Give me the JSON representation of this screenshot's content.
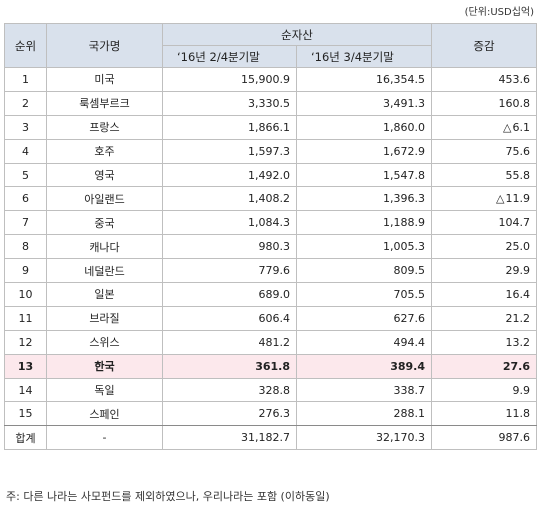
{
  "unit_label": "(단위:USD십억)",
  "header": {
    "rank": "순위",
    "country": "국가명",
    "net_assets": "순자산",
    "q2": "‘16년 2/4분기말",
    "q3": "‘16년 3/4분기말",
    "change": "증감"
  },
  "rows": [
    {
      "rank": "1",
      "country": "미국",
      "q2": "15,900.9",
      "q3": "16,354.5",
      "change": "453.6"
    },
    {
      "rank": "2",
      "country": "룩셈부르크",
      "q2": "3,330.5",
      "q3": "3,491.3",
      "change": "160.8"
    },
    {
      "rank": "3",
      "country": "프랑스",
      "q2": "1,866.1",
      "q3": "1,860.0",
      "change": "6.1",
      "change_prefix": "△"
    },
    {
      "rank": "4",
      "country": "호주",
      "q2": "1,597.3",
      "q3": "1,672.9",
      "change": "75.6"
    },
    {
      "rank": "5",
      "country": "영국",
      "q2": "1,492.0",
      "q3": "1,547.8",
      "change": "55.8"
    },
    {
      "rank": "6",
      "country": "아일랜드",
      "q2": "1,408.2",
      "q3": "1,396.3",
      "change": "11.9",
      "change_prefix": "△"
    },
    {
      "rank": "7",
      "country": "중국",
      "q2": "1,084.3",
      "q3": "1,188.9",
      "change": "104.7"
    },
    {
      "rank": "8",
      "country": "캐나다",
      "q2": "980.3",
      "q3": "1,005.3",
      "change": "25.0"
    },
    {
      "rank": "9",
      "country": "네덜란드",
      "q2": "779.6",
      "q3": "809.5",
      "change": "29.9"
    },
    {
      "rank": "10",
      "country": "일본",
      "q2": "689.0",
      "q3": "705.5",
      "change": "16.4"
    },
    {
      "rank": "11",
      "country": "브라질",
      "q2": "606.4",
      "q3": "627.6",
      "change": "21.2"
    },
    {
      "rank": "12",
      "country": "스위스",
      "q2": "481.2",
      "q3": "494.4",
      "change": "13.2"
    },
    {
      "rank": "13",
      "country": "한국",
      "q2": "361.8",
      "q3": "389.4",
      "change": "27.6",
      "highlight": true
    },
    {
      "rank": "14",
      "country": "독일",
      "q2": "328.8",
      "q3": "338.7",
      "change": "9.9"
    },
    {
      "rank": "15",
      "country": "스페인",
      "q2": "276.3",
      "q3": "288.1",
      "change": "11.8"
    }
  ],
  "total": {
    "label": "합계",
    "country": "-",
    "q2": "31,182.7",
    "q3": "32,170.3",
    "change": "987.6"
  },
  "note": "주: 다른 나라는 사모펀드를 제외하였으나, 우리나라는 포함 (이하동일)",
  "colors": {
    "header_bg": "#d9e1ec",
    "highlight_bg": "#fce8ec",
    "border": "#bfbfbf"
  }
}
